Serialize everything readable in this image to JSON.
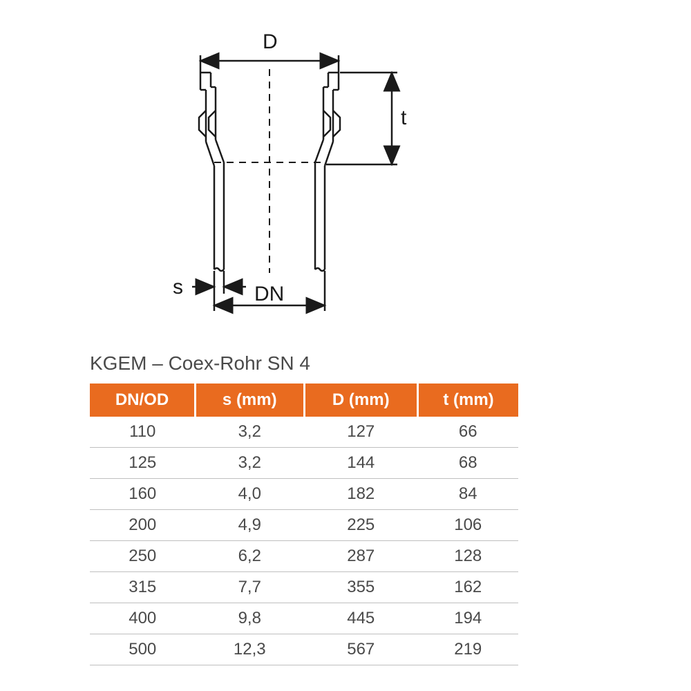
{
  "diagram": {
    "labels": {
      "D": "D",
      "t": "t",
      "s": "s",
      "DN": "DN"
    },
    "stroke": "#1a1a1a",
    "stroke_width": 2.5,
    "dash": "10 8"
  },
  "title": "KGEM – Coex-Rohr SN 4",
  "table": {
    "header_bg": "#e96b1f",
    "header_fg": "#ffffff",
    "row_border": "#bfbfbf",
    "text_color": "#4a4a4a",
    "columns": [
      "DN/OD",
      "s (mm)",
      "D (mm)",
      "t (mm)"
    ],
    "rows": [
      [
        "110",
        "3,2",
        "127",
        "66"
      ],
      [
        "125",
        "3,2",
        "144",
        "68"
      ],
      [
        "160",
        "4,0",
        "182",
        "84"
      ],
      [
        "200",
        "4,9",
        "225",
        "106"
      ],
      [
        "250",
        "6,2",
        "287",
        "128"
      ],
      [
        "315",
        "7,7",
        "355",
        "162"
      ],
      [
        "400",
        "9,8",
        "445",
        "194"
      ],
      [
        "500",
        "12,3",
        "567",
        "219"
      ]
    ]
  }
}
